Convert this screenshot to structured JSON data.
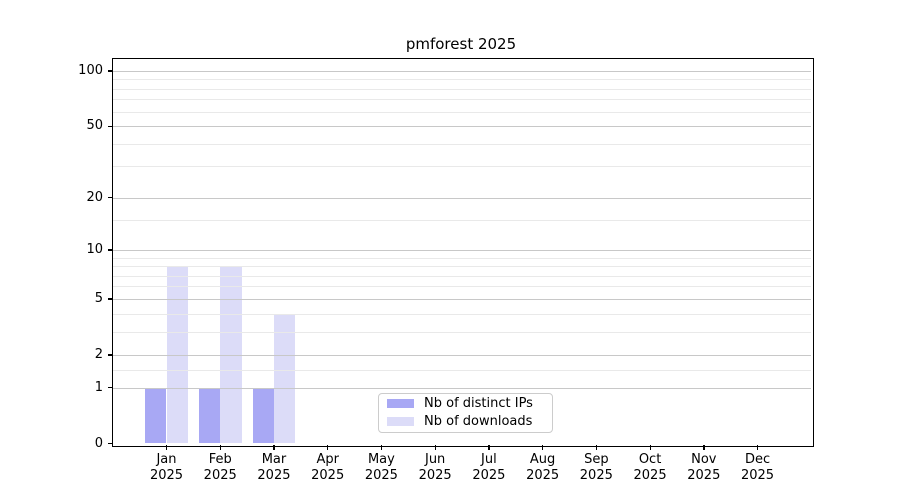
{
  "title": "pmforest 2025",
  "chart_data": {
    "type": "bar",
    "title": "pmforest 2025",
    "x_tick_labels": [
      {
        "month": "Jan",
        "year": "2025"
      },
      {
        "month": "Feb",
        "year": "2025"
      },
      {
        "month": "Mar",
        "year": "2025"
      },
      {
        "month": "Apr",
        "year": "2025"
      },
      {
        "month": "May",
        "year": "2025"
      },
      {
        "month": "Jun",
        "year": "2025"
      },
      {
        "month": "Jul",
        "year": "2025"
      },
      {
        "month": "Aug",
        "year": "2025"
      },
      {
        "month": "Sep",
        "year": "2025"
      },
      {
        "month": "Oct",
        "year": "2025"
      },
      {
        "month": "Nov",
        "year": "2025"
      },
      {
        "month": "Dec",
        "year": "2025"
      }
    ],
    "series": [
      {
        "name": "Nb of distinct IPs",
        "color": "#a8a8f4",
        "values": [
          1,
          1,
          1,
          0,
          0,
          0,
          0,
          0,
          0,
          0,
          0,
          0
        ]
      },
      {
        "name": "Nb of downloads",
        "color": "#dcdcf8",
        "values": [
          8,
          8,
          4,
          0,
          0,
          0,
          0,
          0,
          0,
          0,
          0,
          0
        ]
      }
    ],
    "y_axis": {
      "scale": "log10(1+y)",
      "major_ticks": [
        0,
        1,
        2,
        5,
        10,
        20,
        50,
        100
      ],
      "minor_gridlines": [
        1.5,
        3,
        4,
        6,
        7,
        8,
        9,
        15,
        30,
        40,
        60,
        70,
        80,
        90
      ],
      "range": [
        0,
        116
      ]
    },
    "grid": true,
    "legend_position": "lower center",
    "colors": {
      "background": "#ffffff",
      "spine": "#000000",
      "major_grid": "#c8c8c8",
      "minor_grid": "#e9e9e9",
      "text": "#000000",
      "legend_border": "#cccccc"
    }
  }
}
